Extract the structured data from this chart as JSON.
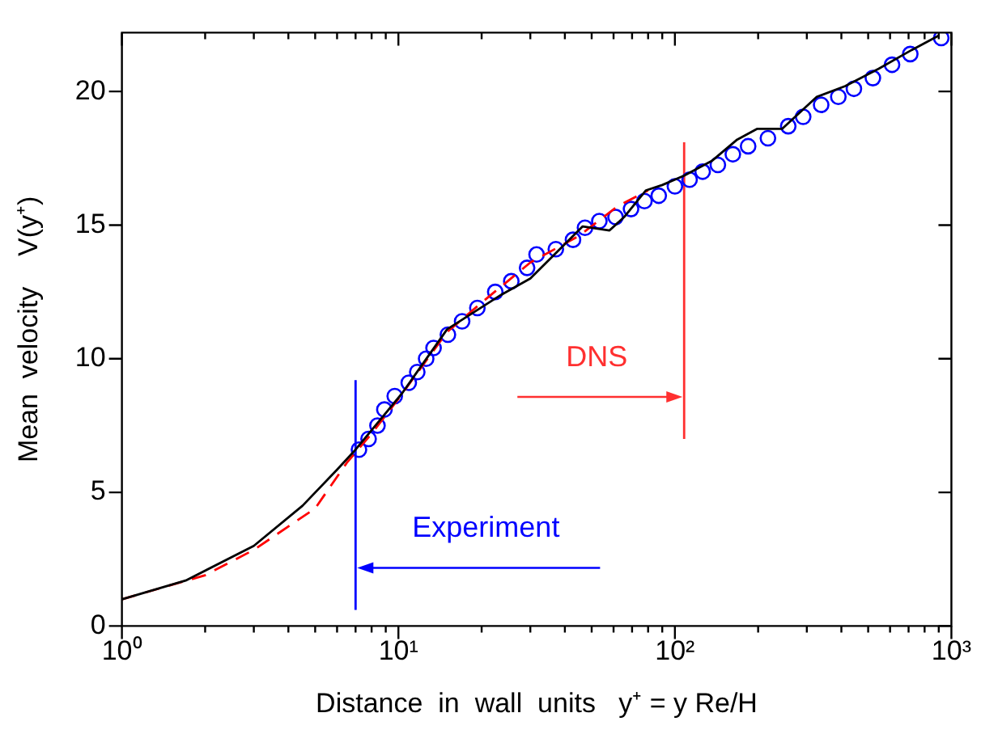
{
  "chart_data": {
    "type": "line",
    "xlabel": "Distance  in  wall  units   y⁺ = y Re/H",
    "ylabel": "Mean  velocity    V(y⁺)",
    "log": "x",
    "grid": false,
    "legend": false,
    "xlim": [
      1,
      1000
    ],
    "ylim": [
      0,
      22.2
    ],
    "xticks": [
      {
        "value": 1,
        "label": "10⁰"
      },
      {
        "value": 2,
        "label": null
      },
      {
        "value": 3,
        "label": null
      },
      {
        "value": 4,
        "label": null
      },
      {
        "value": 5,
        "label": null
      },
      {
        "value": 6,
        "label": null
      },
      {
        "value": 7,
        "label": null
      },
      {
        "value": 8,
        "label": null
      },
      {
        "value": 9,
        "label": null
      },
      {
        "value": 10,
        "label": "10¹"
      },
      {
        "value": 20,
        "label": null
      },
      {
        "value": 30,
        "label": null
      },
      {
        "value": 40,
        "label": null
      },
      {
        "value": 50,
        "label": null
      },
      {
        "value": 60,
        "label": null
      },
      {
        "value": 70,
        "label": null
      },
      {
        "value": 80,
        "label": null
      },
      {
        "value": 90,
        "label": null
      },
      {
        "value": 100,
        "label": "10²"
      },
      {
        "value": 200,
        "label": null
      },
      {
        "value": 300,
        "label": null
      },
      {
        "value": 400,
        "label": null
      },
      {
        "value": 500,
        "label": null
      },
      {
        "value": 600,
        "label": null
      },
      {
        "value": 700,
        "label": null
      },
      {
        "value": 800,
        "label": null
      },
      {
        "value": 900,
        "label": null
      },
      {
        "value": 1000,
        "label": "10³"
      }
    ],
    "yticks": [
      0,
      5,
      10,
      15,
      20
    ],
    "series": [
      {
        "type": "line",
        "color": "#000000",
        "line_style": "solid",
        "marker": "none",
        "x": [
          1,
          1.7,
          3,
          4.5,
          6,
          7,
          10.3,
          15,
          23.6,
          30,
          36.7,
          46.4,
          58,
          65.5,
          78.6,
          90,
          108,
          136,
          168,
          198,
          244,
          326,
          413,
          546,
          718,
          903
        ],
        "values": [
          1.0,
          1.7,
          3.0,
          4.5,
          5.85,
          6.6,
          8.7,
          11.1,
          12.4,
          13.0,
          13.9,
          14.95,
          14.8,
          15.3,
          16.3,
          16.5,
          16.85,
          17.4,
          18.2,
          18.6,
          18.6,
          19.8,
          20.2,
          20.85,
          21.55,
          22.1
        ]
      },
      {
        "type": "line",
        "color": "#ff0000",
        "line_style": "dashed",
        "marker": "none",
        "x": [
          1,
          2,
          3,
          5,
          6.5,
          8,
          10,
          15,
          20,
          30,
          45,
          62,
          80
        ],
        "values": [
          1.0,
          1.9,
          2.85,
          4.4,
          6.1,
          7.2,
          8.5,
          11.0,
          12.1,
          13.6,
          14.6,
          15.7,
          16.3
        ]
      },
      {
        "type": "scatter",
        "color": "#0000ff",
        "marker": "circle",
        "x": [
          7.2,
          7.8,
          8.4,
          8.9,
          9.7,
          10.9,
          11.7,
          12.6,
          13.4,
          15.1,
          17.0,
          19.3,
          22.4,
          25.6,
          29.2,
          31.6,
          37.1,
          42.8,
          47.3,
          53.3,
          61,
          69.4,
          77.6,
          87.4,
          100,
          113,
          126,
          143,
          162,
          184,
          217,
          257,
          291,
          338,
          390,
          444,
          520,
          610,
          710,
          919
        ],
        "values": [
          6.6,
          7.0,
          7.5,
          8.1,
          8.6,
          9.1,
          9.5,
          10.0,
          10.4,
          10.9,
          11.4,
          11.9,
          12.5,
          12.9,
          13.4,
          13.9,
          14.1,
          14.45,
          14.9,
          15.15,
          15.3,
          15.6,
          15.9,
          16.1,
          16.45,
          16.7,
          17.0,
          17.25,
          17.65,
          17.95,
          18.25,
          18.7,
          19.05,
          19.5,
          19.8,
          20.1,
          20.5,
          21.0,
          21.4,
          22.0
        ]
      },
      {
        "type": "line",
        "color": "#0000ff",
        "line_style": "solid",
        "marker": "none",
        "x": [
          7,
          7
        ],
        "values": [
          0.6,
          9.2
        ]
      },
      {
        "type": "line",
        "color": "#ff3030",
        "line_style": "solid",
        "marker": "none",
        "x": [
          108,
          108
        ],
        "values": [
          7.0,
          18.1
        ]
      }
    ],
    "annotations": [
      "Experiment",
      "DNS"
    ]
  }
}
